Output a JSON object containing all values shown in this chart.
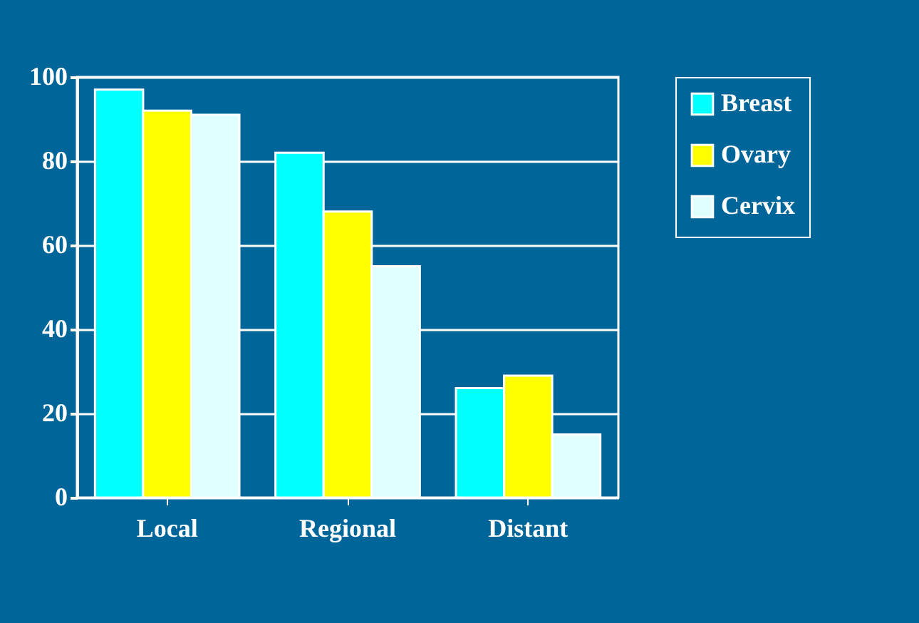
{
  "chart_data": {
    "type": "bar",
    "categories": [
      "Local",
      "Regional",
      "Distant"
    ],
    "series": [
      {
        "name": "Breast",
        "color": "#00ffff",
        "values": [
          97,
          82,
          26
        ]
      },
      {
        "name": "Ovary",
        "color": "#ffff00",
        "values": [
          92,
          68,
          29
        ]
      },
      {
        "name": "Cervix",
        "color": "#e0ffff",
        "values": [
          91,
          55,
          15
        ]
      }
    ],
    "ylim": [
      0,
      100
    ],
    "yticks": [
      0,
      20,
      40,
      60,
      80,
      100
    ],
    "grid": "y",
    "legend": "right"
  }
}
